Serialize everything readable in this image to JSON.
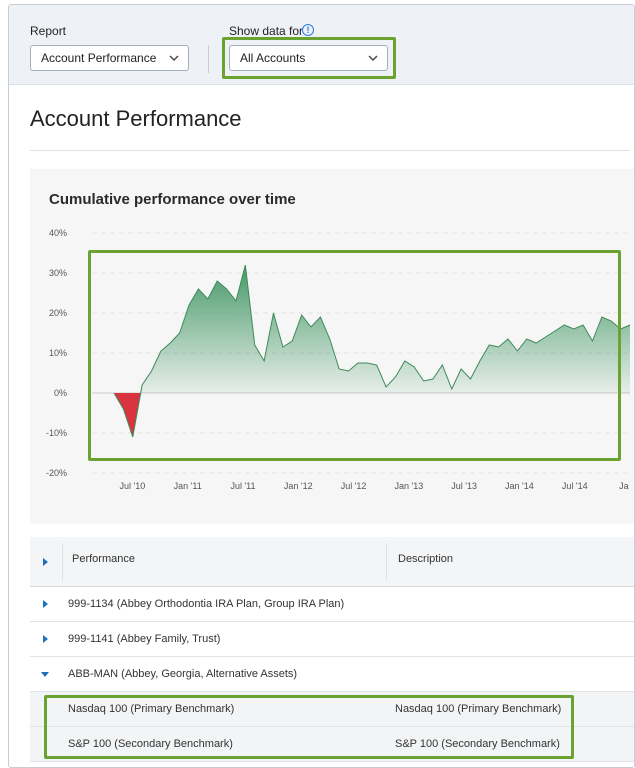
{
  "filters": {
    "report_label": "Report",
    "report_value": "Account Performance",
    "show_data_label": "Show data for",
    "show_data_value": "All Accounts"
  },
  "page_title": "Account Performance",
  "chart_data": {
    "type": "area",
    "title": "Cumulative performance over time",
    "xlabel": "",
    "ylabel": "",
    "ylim": [
      -20,
      40
    ],
    "yticks": [
      "40%",
      "30%",
      "20%",
      "10%",
      "0%",
      "-10%",
      "-20%"
    ],
    "xticks": [
      "Jul '10",
      "Jan '11",
      "Jul '11",
      "Jan '12",
      "Jul '12",
      "Jan '13",
      "Jul '13",
      "Jan '14",
      "Jul '14",
      "Ja"
    ],
    "positive_color": "#3d9460",
    "negative_color": "#d9343f",
    "series": [
      {
        "x": [
          0,
          1,
          2,
          3,
          4,
          5,
          6,
          7,
          8,
          9,
          10,
          11,
          12,
          13,
          14,
          15,
          16,
          17,
          18,
          19,
          20,
          21,
          22,
          23,
          24,
          25,
          26,
          27,
          28,
          29,
          30,
          31,
          32,
          33,
          34,
          35,
          36,
          37,
          38,
          39,
          40,
          41,
          42,
          43,
          44,
          45,
          46,
          47,
          48,
          49,
          50,
          51,
          52,
          53,
          54,
          55
        ],
        "values": [
          0,
          -4,
          -11,
          2,
          5.5,
          10.5,
          12.5,
          15,
          22,
          26,
          23.5,
          28,
          26,
          23,
          32,
          12,
          8,
          20,
          11.5,
          13,
          19.5,
          16.5,
          19,
          13.5,
          6,
          5.5,
          7.5,
          7.5,
          7,
          1.5,
          4,
          8,
          6.5,
          3,
          3.5,
          7,
          1,
          6,
          3.5,
          8,
          12,
          11.5,
          13.5,
          10.5,
          13.5,
          12.5,
          14,
          15.5,
          17,
          16,
          17,
          13,
          19,
          18,
          16,
          17
        ]
      }
    ]
  },
  "table": {
    "header_performance": "Performance",
    "header_description": "Description",
    "rows": [
      {
        "label": "999-1134 (Abbey Orthodontia IRA Plan, Group IRA Plan)"
      },
      {
        "label": "999-1141 (Abbey Family, Trust)"
      },
      {
        "label": "ABB-MAN (Abbey, Georgia, Alternative Assets)"
      }
    ],
    "sub_rows": [
      {
        "label": "Nasdaq 100 (Primary Benchmark)",
        "description": "Nasdaq 100 (Primary Benchmark)"
      },
      {
        "label": "S&P 100 (Secondary Benchmark)",
        "description": "S&P 100 (Secondary Benchmark)"
      }
    ]
  }
}
